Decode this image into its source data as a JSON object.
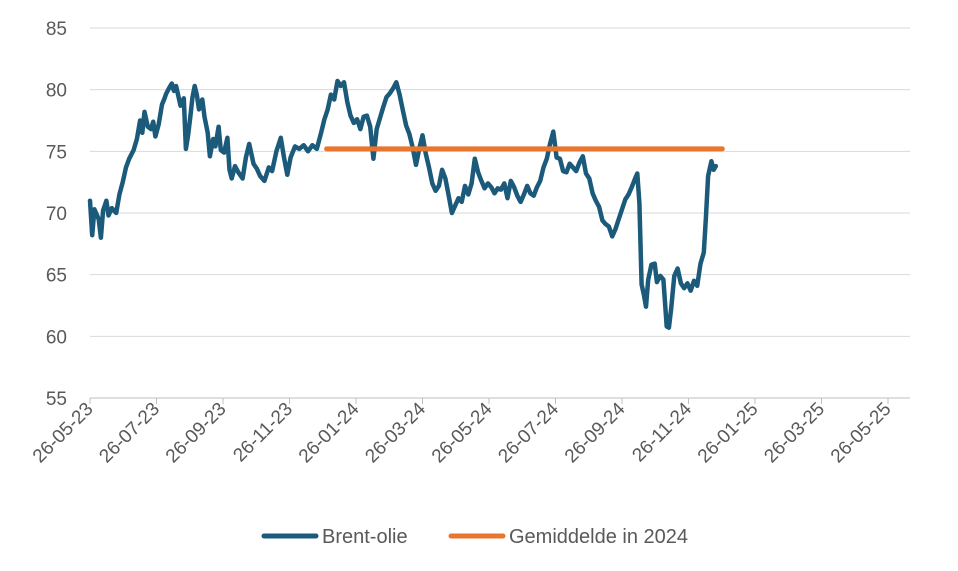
{
  "chart_data": {
    "type": "line",
    "title": "",
    "xlabel": "",
    "ylabel": "",
    "ylim": [
      55,
      85
    ],
    "y_ticks": [
      "85",
      "80",
      "75",
      "70",
      "65",
      "60",
      "55"
    ],
    "x_ticks": [
      "26-05-23",
      "26-07-23",
      "26-09-23",
      "26-11-23",
      "26-01-24",
      "26-03-24",
      "26-05-24",
      "26-07-24",
      "26-09-24",
      "26-11-24",
      "26-01-25",
      "26-03-25",
      "26-05-25"
    ],
    "grid": true,
    "legend_position": "bottom",
    "x_range_days": [
      0,
      745
    ],
    "series": [
      {
        "name": "Brent-olie",
        "color": "#1b5a7a",
        "points": [
          [
            0,
            71.0
          ],
          [
            2,
            68.2
          ],
          [
            4,
            70.3
          ],
          [
            8,
            69.5
          ],
          [
            10,
            68.0
          ],
          [
            12,
            70.2
          ],
          [
            15,
            71.0
          ],
          [
            17,
            69.8
          ],
          [
            20,
            70.4
          ],
          [
            24,
            70.0
          ],
          [
            27,
            71.5
          ],
          [
            30,
            72.5
          ],
          [
            33,
            73.7
          ],
          [
            36,
            74.4
          ],
          [
            40,
            75.1
          ],
          [
            43,
            76.0
          ],
          [
            46,
            77.5
          ],
          [
            48,
            76.5
          ],
          [
            50,
            78.2
          ],
          [
            53,
            77.0
          ],
          [
            56,
            76.8
          ],
          [
            58,
            77.4
          ],
          [
            60,
            76.2
          ],
          [
            63,
            77.2
          ],
          [
            66,
            78.8
          ],
          [
            68,
            79.2
          ],
          [
            70,
            79.7
          ],
          [
            73,
            80.2
          ],
          [
            75,
            80.5
          ],
          [
            77,
            79.9
          ],
          [
            79,
            80.3
          ],
          [
            81,
            79.5
          ],
          [
            83,
            78.7
          ],
          [
            86,
            79.3
          ],
          [
            88,
            75.2
          ],
          [
            90,
            76.3
          ],
          [
            92,
            77.8
          ],
          [
            94,
            79.4
          ],
          [
            96,
            80.3
          ],
          [
            98,
            79.6
          ],
          [
            100,
            78.4
          ],
          [
            103,
            79.2
          ],
          [
            105,
            77.8
          ],
          [
            108,
            76.5
          ],
          [
            110,
            74.6
          ],
          [
            113,
            76.0
          ],
          [
            115,
            75.4
          ],
          [
            118,
            77.0
          ],
          [
            120,
            75.1
          ],
          [
            123,
            74.9
          ],
          [
            126,
            76.1
          ],
          [
            128,
            73.5
          ],
          [
            130,
            72.8
          ],
          [
            133,
            73.8
          ],
          [
            136,
            73.3
          ],
          [
            140,
            72.8
          ],
          [
            143,
            74.5
          ],
          [
            146,
            75.6
          ],
          [
            150,
            74.0
          ],
          [
            153,
            73.6
          ],
          [
            156,
            73.0
          ],
          [
            160,
            72.6
          ],
          [
            164,
            73.7
          ],
          [
            167,
            73.4
          ],
          [
            171,
            75.0
          ],
          [
            175,
            76.1
          ],
          [
            178,
            74.5
          ],
          [
            181,
            73.1
          ],
          [
            184,
            74.5
          ],
          [
            188,
            75.4
          ],
          [
            192,
            75.2
          ],
          [
            196,
            75.5
          ],
          [
            200,
            75.0
          ],
          [
            204,
            75.5
          ],
          [
            208,
            75.2
          ],
          [
            212,
            76.5
          ],
          [
            215,
            77.6
          ],
          [
            218,
            78.4
          ],
          [
            221,
            79.6
          ],
          [
            224,
            79.2
          ],
          [
            227,
            80.7
          ],
          [
            230,
            80.3
          ],
          [
            233,
            80.6
          ],
          [
            236,
            79.0
          ],
          [
            239,
            77.9
          ],
          [
            242,
            77.3
          ],
          [
            245,
            77.6
          ],
          [
            248,
            76.8
          ],
          [
            251,
            77.8
          ],
          [
            254,
            77.9
          ],
          [
            257,
            77.0
          ],
          [
            260,
            74.4
          ],
          [
            263,
            76.8
          ],
          [
            266,
            77.7
          ],
          [
            269,
            78.6
          ],
          [
            272,
            79.4
          ],
          [
            275,
            79.7
          ],
          [
            278,
            80.1
          ],
          [
            281,
            80.6
          ],
          [
            284,
            79.6
          ],
          [
            287,
            78.3
          ],
          [
            290,
            77.1
          ],
          [
            293,
            76.4
          ],
          [
            296,
            75.3
          ],
          [
            299,
            73.9
          ],
          [
            302,
            75.2
          ],
          [
            305,
            76.3
          ],
          [
            308,
            74.8
          ],
          [
            311,
            73.7
          ],
          [
            314,
            72.4
          ],
          [
            317,
            71.8
          ],
          [
            320,
            72.2
          ],
          [
            323,
            73.5
          ],
          [
            326,
            72.8
          ],
          [
            329,
            71.4
          ],
          [
            332,
            70.0
          ],
          [
            335,
            70.6
          ],
          [
            338,
            71.2
          ],
          [
            341,
            70.9
          ],
          [
            344,
            72.2
          ],
          [
            347,
            71.5
          ],
          [
            350,
            72.4
          ],
          [
            353,
            74.4
          ],
          [
            356,
            73.3
          ],
          [
            359,
            72.6
          ],
          [
            362,
            72.0
          ],
          [
            365,
            72.4
          ],
          [
            368,
            72.1
          ],
          [
            371,
            71.6
          ],
          [
            374,
            72.0
          ],
          [
            377,
            71.9
          ],
          [
            380,
            72.4
          ],
          [
            383,
            71.2
          ],
          [
            386,
            72.6
          ],
          [
            389,
            72.1
          ],
          [
            392,
            71.4
          ],
          [
            395,
            70.9
          ],
          [
            398,
            71.5
          ],
          [
            401,
            72.2
          ],
          [
            404,
            71.6
          ],
          [
            407,
            71.4
          ],
          [
            410,
            72.1
          ],
          [
            413,
            72.6
          ],
          [
            416,
            73.7
          ],
          [
            419,
            74.4
          ],
          [
            422,
            75.6
          ],
          [
            425,
            76.6
          ],
          [
            428,
            74.5
          ],
          [
            431,
            74.4
          ],
          [
            434,
            73.4
          ],
          [
            437,
            73.3
          ],
          [
            440,
            74.0
          ],
          [
            443,
            73.7
          ],
          [
            446,
            73.4
          ],
          [
            449,
            74.1
          ],
          [
            452,
            74.6
          ],
          [
            455,
            73.2
          ],
          [
            458,
            72.8
          ],
          [
            461,
            71.6
          ],
          [
            464,
            71.0
          ],
          [
            467,
            70.5
          ],
          [
            470,
            69.4
          ],
          [
            473,
            69.1
          ],
          [
            476,
            68.9
          ],
          [
            479,
            68.1
          ],
          [
            482,
            68.7
          ],
          [
            485,
            69.5
          ],
          [
            488,
            70.3
          ],
          [
            491,
            71.1
          ],
          [
            494,
            71.5
          ],
          [
            497,
            72.1
          ],
          [
            500,
            72.8
          ],
          [
            502,
            73.2
          ],
          [
            504,
            70.8
          ],
          [
            506,
            64.2
          ],
          [
            508,
            63.4
          ],
          [
            510,
            62.4
          ],
          [
            512,
            64.6
          ],
          [
            515,
            65.8
          ],
          [
            518,
            65.9
          ],
          [
            520,
            64.4
          ],
          [
            523,
            64.9
          ],
          [
            526,
            64.6
          ],
          [
            529,
            60.8
          ],
          [
            531,
            60.7
          ],
          [
            533,
            62.2
          ],
          [
            536,
            64.9
          ],
          [
            539,
            65.5
          ],
          [
            542,
            64.3
          ],
          [
            545,
            63.9
          ],
          [
            548,
            64.3
          ],
          [
            551,
            63.7
          ],
          [
            554,
            64.5
          ],
          [
            557,
            64.1
          ],
          [
            560,
            65.9
          ],
          [
            563,
            66.8
          ],
          [
            565,
            69.6
          ],
          [
            567,
            73.0
          ],
          [
            570,
            74.2
          ],
          [
            572,
            73.5
          ],
          [
            574,
            73.8
          ]
        ]
      },
      {
        "name": "Gemiddelde in 2024",
        "color": "#e8762f",
        "points": [
          [
            217,
            75.2
          ],
          [
            580,
            75.2
          ]
        ]
      }
    ]
  },
  "legend": {
    "items": [
      {
        "label": "Brent-olie",
        "color": "#1b5a7a"
      },
      {
        "label": "Gemiddelde in 2024",
        "color": "#e8762f"
      }
    ]
  }
}
